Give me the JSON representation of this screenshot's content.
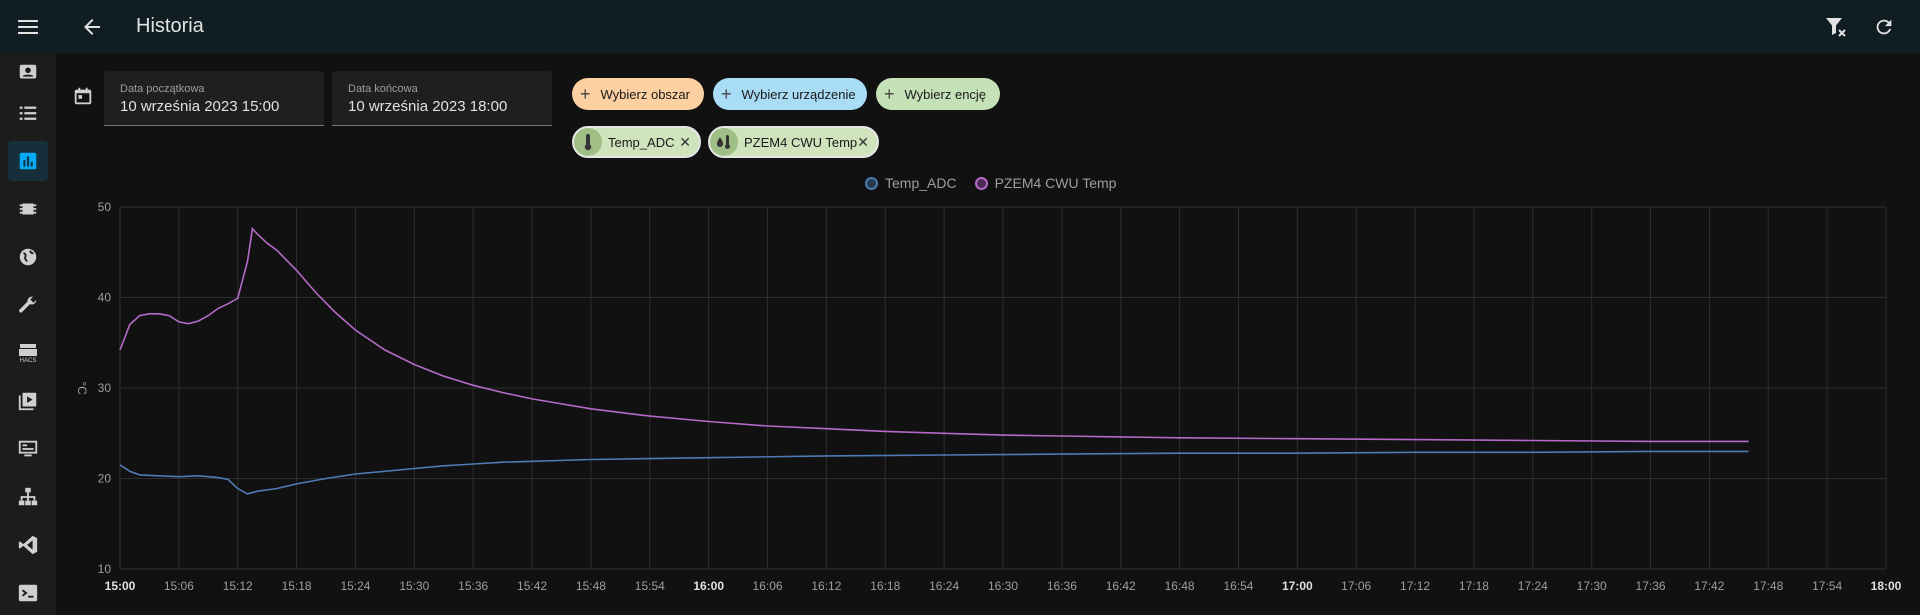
{
  "header": {
    "title": "Historia",
    "icons": [
      "menu-icon",
      "arrow-left-icon",
      "filter-remove-icon",
      "refresh-icon"
    ]
  },
  "sidebar": {
    "items": [
      {
        "icon": "account-box-icon",
        "active": false
      },
      {
        "icon": "list-icon",
        "active": false
      },
      {
        "icon": "chart-box-icon",
        "active": true
      },
      {
        "icon": "chip-icon",
        "active": false
      },
      {
        "icon": "globe-icon",
        "active": false
      },
      {
        "icon": "wrench-icon",
        "active": false
      },
      {
        "icon": "hacs-icon",
        "active": false
      },
      {
        "icon": "play-box-icon",
        "active": false
      },
      {
        "icon": "monitor-dashboard-icon",
        "active": false
      },
      {
        "icon": "sitemap-icon",
        "active": false
      },
      {
        "icon": "vscode-icon",
        "active": false
      },
      {
        "icon": "console-icon",
        "active": false
      }
    ],
    "hacs_label": "HACS"
  },
  "filters": {
    "start_label": "Data początkowa",
    "start_value": "10 września 2023 15:00",
    "end_label": "Data końcowa",
    "end_value": "10 września 2023 18:00",
    "choose_area": "Wybierz obszar",
    "choose_device": "Wybierz urządzenie",
    "choose_entity": "Wybierz encję",
    "entities": [
      {
        "name": "Temp_ADC",
        "icon": "thermometer-icon"
      },
      {
        "name": "PZEM4 CWU Temp",
        "icon": "water-thermometer-icon"
      }
    ]
  },
  "chart_data": {
    "type": "line",
    "ylabel": "°C",
    "ylim": [
      10,
      50
    ],
    "yticks": [
      10,
      20,
      30,
      40,
      50
    ],
    "xlim": [
      "15:00",
      "18:00"
    ],
    "xticks": [
      "15:00",
      "15:06",
      "15:12",
      "15:18",
      "15:24",
      "15:30",
      "15:36",
      "15:42",
      "15:48",
      "15:54",
      "16:00",
      "16:06",
      "16:12",
      "16:18",
      "16:24",
      "16:30",
      "16:36",
      "16:42",
      "16:48",
      "16:54",
      "17:00",
      "17:06",
      "17:12",
      "17:18",
      "17:24",
      "17:30",
      "17:36",
      "17:42",
      "17:48",
      "17:54",
      "18:00"
    ],
    "bold_ticks": [
      "15:00",
      "16:00",
      "17:00",
      "18:00"
    ],
    "legend_position": "top-center",
    "grid": true,
    "series": [
      {
        "name": "Temp_ADC",
        "color": "#4e7bb3",
        "points": [
          [
            "15:00",
            21.5
          ],
          [
            "15:01",
            20.8
          ],
          [
            "15:02",
            20.4
          ],
          [
            "15:04",
            20.3
          ],
          [
            "15:06",
            20.2
          ],
          [
            "15:08",
            20.3
          ],
          [
            "15:10",
            20.1
          ],
          [
            "15:11",
            19.9
          ],
          [
            "15:12",
            18.9
          ],
          [
            "15:13",
            18.3
          ],
          [
            "15:14",
            18.6
          ],
          [
            "15:16",
            18.9
          ],
          [
            "15:18",
            19.4
          ],
          [
            "15:21",
            20.0
          ],
          [
            "15:24",
            20.5
          ],
          [
            "15:27",
            20.8
          ],
          [
            "15:30",
            21.1
          ],
          [
            "15:33",
            21.4
          ],
          [
            "15:36",
            21.6
          ],
          [
            "15:39",
            21.8
          ],
          [
            "15:42",
            21.9
          ],
          [
            "15:48",
            22.1
          ],
          [
            "15:54",
            22.2
          ],
          [
            "16:00",
            22.3
          ],
          [
            "16:12",
            22.5
          ],
          [
            "16:24",
            22.6
          ],
          [
            "16:36",
            22.7
          ],
          [
            "16:48",
            22.8
          ],
          [
            "17:00",
            22.8
          ],
          [
            "17:12",
            22.9
          ],
          [
            "17:24",
            22.9
          ],
          [
            "17:36",
            23.0
          ],
          [
            "17:46",
            23.0
          ]
        ]
      },
      {
        "name": "PZEM4 CWU Temp",
        "color": "#b56ac7",
        "points": [
          [
            "15:00",
            34.2
          ],
          [
            "15:01",
            37.0
          ],
          [
            "15:02",
            38.0
          ],
          [
            "15:03",
            38.2
          ],
          [
            "15:04",
            38.2
          ],
          [
            "15:05",
            38.0
          ],
          [
            "15:06",
            37.3
          ],
          [
            "15:07",
            37.1
          ],
          [
            "15:08",
            37.4
          ],
          [
            "15:09",
            38.0
          ],
          [
            "15:10",
            38.8
          ],
          [
            "15:11",
            39.3
          ],
          [
            "15:12",
            39.9
          ],
          [
            "15:13",
            44.0
          ],
          [
            "15:13.5",
            47.6
          ],
          [
            "15:14",
            47.0
          ],
          [
            "15:15",
            46.0
          ],
          [
            "15:16",
            45.2
          ],
          [
            "15:18",
            43.0
          ],
          [
            "15:20",
            40.5
          ],
          [
            "15:22",
            38.3
          ],
          [
            "15:24",
            36.4
          ],
          [
            "15:27",
            34.2
          ],
          [
            "15:30",
            32.6
          ],
          [
            "15:33",
            31.3
          ],
          [
            "15:36",
            30.3
          ],
          [
            "15:39",
            29.5
          ],
          [
            "15:42",
            28.8
          ],
          [
            "15:48",
            27.7
          ],
          [
            "15:54",
            26.9
          ],
          [
            "16:00",
            26.3
          ],
          [
            "16:06",
            25.8
          ],
          [
            "16:12",
            25.5
          ],
          [
            "16:18",
            25.2
          ],
          [
            "16:24",
            25.0
          ],
          [
            "16:30",
            24.8
          ],
          [
            "16:36",
            24.7
          ],
          [
            "16:42",
            24.6
          ],
          [
            "16:48",
            24.5
          ],
          [
            "17:00",
            24.4
          ],
          [
            "17:12",
            24.3
          ],
          [
            "17:24",
            24.2
          ],
          [
            "17:36",
            24.1
          ],
          [
            "17:46",
            24.1
          ]
        ]
      }
    ]
  }
}
